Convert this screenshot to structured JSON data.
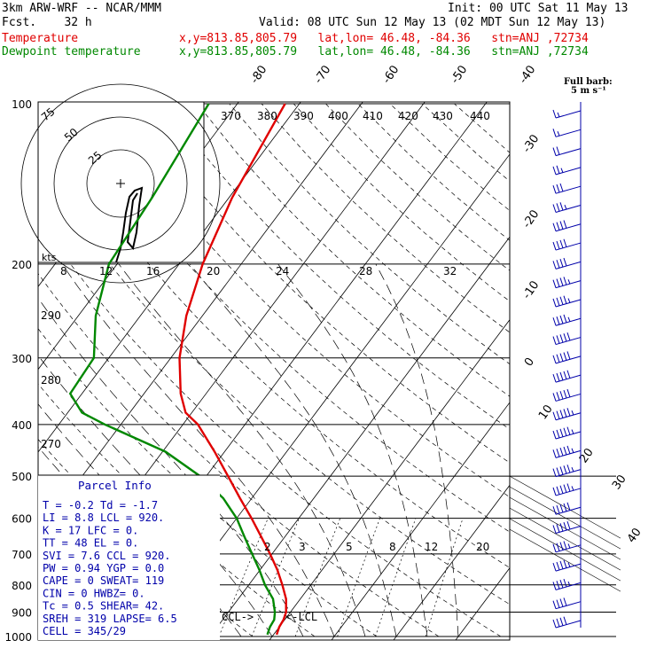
{
  "header": {
    "model": "3km ARW-WRF -- NCAR/MMM",
    "forecast": "Fcst.    32 h",
    "init": "Init: 00 UTC Sat 11 May 13",
    "valid": "Valid: 08 UTC Sun 12 May 13 (02 MDT Sun 12 May 13)",
    "temp_label": "Temperature",
    "temp_info": "x,y=813.85,805.79   lat,lon= 46.48, -84.36   stn=ANJ ,72734",
    "dew_label": "Dewpoint temperature",
    "dew_info": "x,y=813.85,805.79   lat,lon= 46.48, -84.36   stn=ANJ ,72734",
    "barb_key": "Full barb:",
    "barb_key2": "5 m s⁻¹",
    "colors": {
      "temperature": "#e00000",
      "dewpoint": "#008800",
      "trace": "#000000"
    }
  },
  "hodograph": {
    "unit": "kts",
    "ring_labels": [
      "25",
      "50",
      "75"
    ]
  },
  "parcel": {
    "title": "Parcel Info",
    "lines": [
      "T  =   -0.2  Td =  -1.7",
      "LI =    8.8  LCL =  920.",
      "K  =     17  LFC =    0.",
      "TT =     48  EL  =    0.",
      "SVI =   7.6  CCL =  920.",
      "PW =   0.94  YGP =   0.0",
      "CAPE =    0  SWEAT=  119",
      "CIN  =    0  HWBZ=    0.",
      "Tc   =  0.5  SHEAR=  42.",
      "SREH =  319  LAPSE=  6.5",
      "CELL = 345/29"
    ],
    "ccl_marker": "CCL->",
    "lcl_marker": "<-LCL"
  },
  "chart_data": {
    "type": "line",
    "title": "",
    "xlabel": "",
    "ylabel": "",
    "y_scale": "log-pressure",
    "ylim": [
      1000,
      100
    ],
    "pressure_ticks": [
      "100",
      "200",
      "300",
      "400",
      "500",
      "600",
      "700",
      "800",
      "900",
      "1000"
    ],
    "pressure_lines": [
      100,
      200,
      300,
      400,
      500,
      600,
      700,
      800,
      900,
      1000
    ],
    "isotherm_labels": [
      "-80",
      "-70",
      "-60",
      "-50",
      "-40",
      "-30",
      "-20",
      "-10",
      "0",
      "10",
      "20",
      "30",
      "40"
    ],
    "theta_e_labels": [
      "370",
      "380",
      "390",
      "400",
      "410",
      "420",
      "430",
      "440"
    ],
    "hodo_speed_labels": [
      "8",
      "12",
      "16",
      "20",
      "24",
      "28",
      "32"
    ],
    "theta_labels": [
      "290",
      "280",
      "270"
    ],
    "mixing_ratio_labels": [
      "2",
      "3",
      "5",
      "8",
      "12",
      "20"
    ],
    "series": [
      {
        "name": "Temperature",
        "color": "#e00000",
        "pressure": [
          992,
          960,
          930,
          900,
          850,
          800,
          750,
          700,
          650,
          600,
          550,
          500,
          450,
          400,
          380,
          350,
          300,
          250,
          200,
          150,
          100
        ],
        "values": [
          0.5,
          0.0,
          -0.2,
          -0.7,
          -2.3,
          -4.6,
          -7.2,
          -10.3,
          -13.8,
          -17.6,
          -21.9,
          -26.5,
          -31.6,
          -37.6,
          -41.0,
          -44.1,
          -48.6,
          -52.6,
          -56.2,
          -59.5,
          -62.3
        ]
      },
      {
        "name": "Dewpoint temperature",
        "color": "#008800",
        "pressure": [
          992,
          960,
          930,
          900,
          850,
          800,
          750,
          700,
          650,
          600,
          550,
          500,
          450,
          400,
          380,
          350,
          300,
          250,
          200,
          150,
          100
        ],
        "values": [
          -1.0,
          -1.5,
          -1.7,
          -2.5,
          -4.4,
          -7.4,
          -10.1,
          -13.2,
          -16.5,
          -20.0,
          -24.6,
          -31.0,
          -39.5,
          -52.6,
          -57.7,
          -61.9,
          -62.4,
          -67.2,
          -71.3,
          -72.4,
          -74.6
        ]
      }
    ],
    "wind_barbs_speed_kt": [
      15,
      15,
      20,
      25,
      30,
      35,
      40,
      40,
      40,
      45,
      45,
      45,
      50,
      50,
      50,
      50,
      55,
      55,
      55,
      55,
      55,
      50,
      50,
      45,
      45,
      45,
      40,
      40
    ],
    "legend": "top-left"
  }
}
